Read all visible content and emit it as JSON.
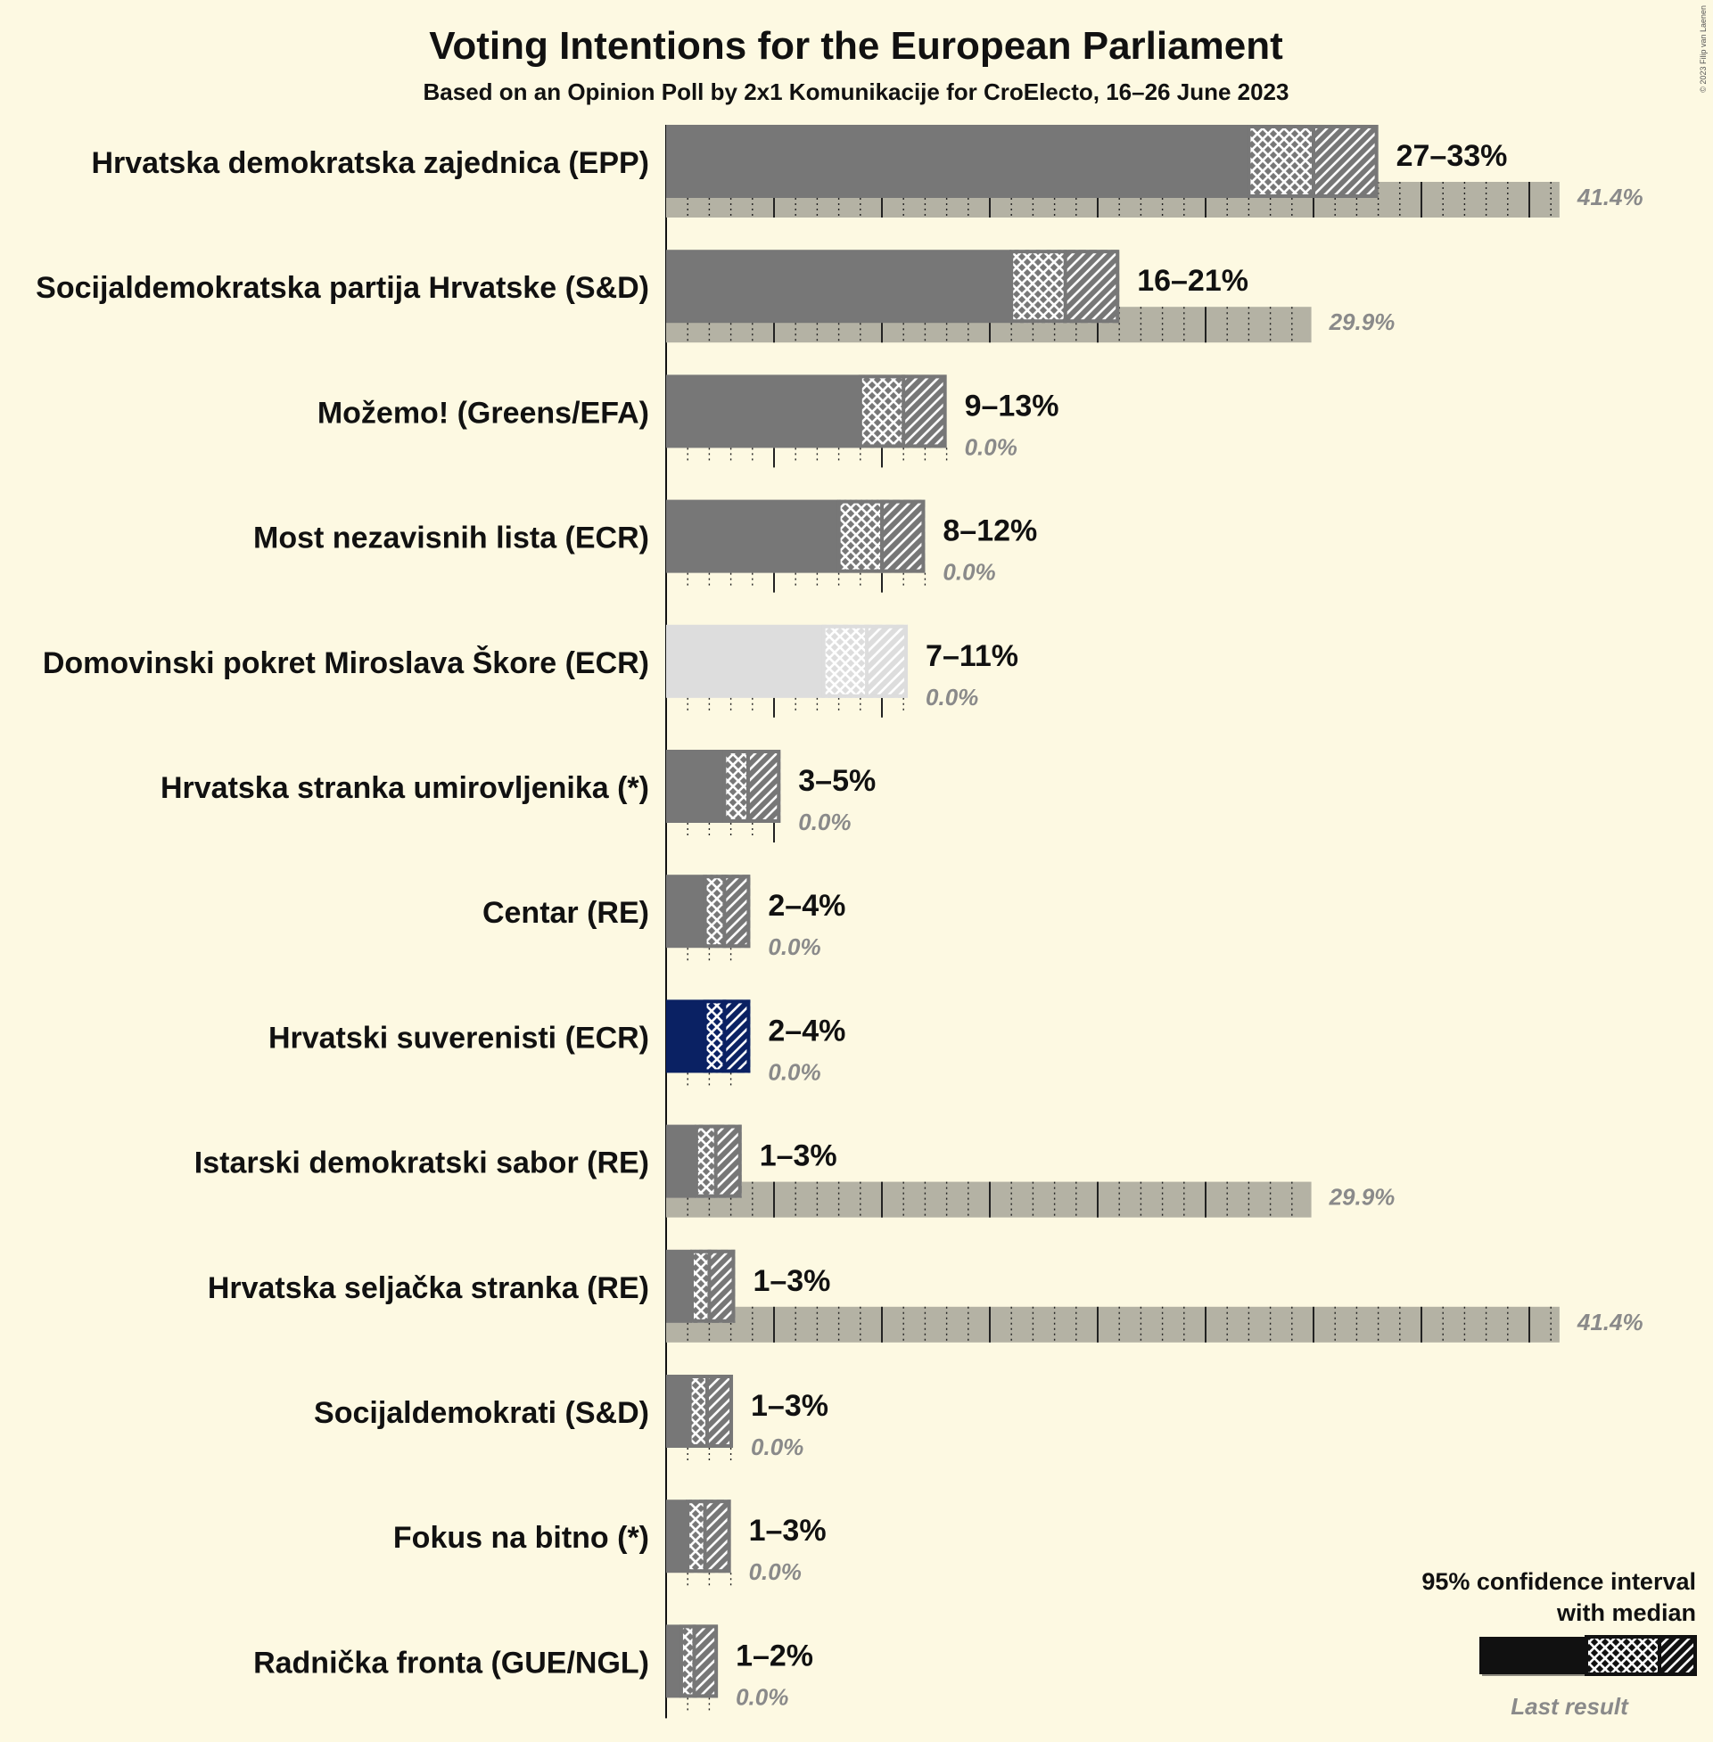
{
  "title": "Voting Intentions for the European Parliament",
  "subtitle": "Based on an Opinion Poll by 2x1 Komunikacije for CroElecto, 16–26 June 2023",
  "copyright": "© 2023 Filip van Laenen",
  "legend": {
    "line1": "95% confidence interval",
    "line2": "with median",
    "last_result": "Last result"
  },
  "colors": {
    "background": "#fdf9e2",
    "bar_default": "#777777",
    "last_result": "#b4b2a4",
    "highlight_dmp": "#dddddd",
    "highlight_hs": "#0a2163"
  },
  "chart_data": {
    "type": "bar",
    "orientation": "horizontal",
    "xlim": [
      0,
      42
    ],
    "parties": [
      {
        "name": "Hrvatska demokratska zajednica (EPP)",
        "low": 27,
        "median": 30,
        "high": 33,
        "range_label": "27–33%",
        "last": 41.4,
        "last_label": "41.4%",
        "color": "#777777"
      },
      {
        "name": "Socijaldemokratska partija Hrvatske (S&D)",
        "low": 16,
        "median": 18.5,
        "high": 21,
        "range_label": "16–21%",
        "last": 29.9,
        "last_label": "29.9%",
        "color": "#777777"
      },
      {
        "name": "Možemo! (Greens/EFA)",
        "low": 9,
        "median": 11,
        "high": 13,
        "range_label": "9–13%",
        "last": 0,
        "last_label": "0.0%",
        "color": "#777777"
      },
      {
        "name": "Most nezavisnih lista (ECR)",
        "low": 8,
        "median": 10,
        "high": 12,
        "range_label": "8–12%",
        "last": 0,
        "last_label": "0.0%",
        "color": "#777777"
      },
      {
        "name": "Domovinski pokret Miroslava Škore (ECR)",
        "low": 7.3,
        "median": 9.3,
        "high": 11.2,
        "range_label": "7–11%",
        "last": 0,
        "last_label": "0.0%",
        "color": "#dddddd"
      },
      {
        "name": "Hrvatska stranka umirovljenika (*)",
        "low": 2.7,
        "median": 3.8,
        "high": 5.3,
        "range_label": "3–5%",
        "last": 0,
        "last_label": "0.0%",
        "color": "#777777"
      },
      {
        "name": "Centar (RE)",
        "low": 1.8,
        "median": 2.7,
        "high": 3.9,
        "range_label": "2–4%",
        "last": 0,
        "last_label": "0.0%",
        "color": "#777777"
      },
      {
        "name": "Hrvatski suverenisti (ECR)",
        "low": 1.8,
        "median": 2.7,
        "high": 3.9,
        "range_label": "2–4%",
        "last": 0,
        "last_label": "0.0%",
        "color": "#0a2163"
      },
      {
        "name": "Istarski demokratski sabor (RE)",
        "low": 1.4,
        "median": 2.3,
        "high": 3.5,
        "range_label": "1–3%",
        "last": 29.9,
        "last_label": "29.9%",
        "color": "#777777"
      },
      {
        "name": "Hrvatska seljačka stranka (RE)",
        "low": 1.2,
        "median": 2.0,
        "high": 3.2,
        "range_label": "1–3%",
        "last": 41.4,
        "last_label": "41.4%",
        "color": "#777777"
      },
      {
        "name": "Socijaldemokrati (S&D)",
        "low": 1.1,
        "median": 1.9,
        "high": 3.1,
        "range_label": "1–3%",
        "last": 0,
        "last_label": "0.0%",
        "color": "#777777"
      },
      {
        "name": "Fokus na bitno (*)",
        "low": 1.0,
        "median": 1.8,
        "high": 3.0,
        "range_label": "1–3%",
        "last": 0,
        "last_label": "0.0%",
        "color": "#777777"
      },
      {
        "name": "Radnička fronta (GUE/NGL)",
        "low": 0.7,
        "median": 1.3,
        "high": 2.4,
        "range_label": "1–2%",
        "last": 0,
        "last_label": "0.0%",
        "color": "#777777"
      }
    ]
  }
}
